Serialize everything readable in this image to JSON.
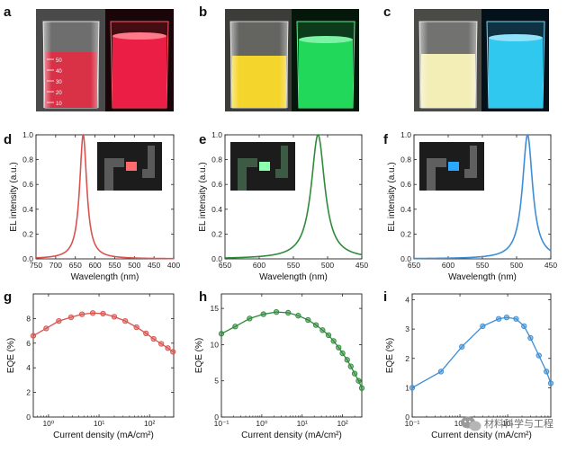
{
  "panel_labels": {
    "a": "a",
    "b": "b",
    "c": "c",
    "d": "d",
    "e": "e",
    "f": "f",
    "g": "g",
    "h": "h",
    "i": "i"
  },
  "photos": {
    "a": {
      "liquid_left": "#d7263d",
      "liquid_right": "#f4204a",
      "glow_bg": "#1a0608",
      "beaker_marks": [
        "50",
        "40",
        "30",
        "20",
        "10"
      ]
    },
    "b": {
      "liquid_left": "#f4d320",
      "liquid_right": "#22d85a",
      "glow_bg": "#05170a"
    },
    "c": {
      "liquid_left": "#f1edb2",
      "liquid_right": "#31c8f0",
      "glow_bg": "#04111a"
    }
  },
  "colors": {
    "red": "#d9534f",
    "green": "#2e8b3a",
    "blue": "#3d8ed6"
  },
  "watermark": "材料科学与工程",
  "watermark_icon": "wechat-icon",
  "chart_data": [
    {
      "panel": "d",
      "type": "line",
      "color": "#d9534f",
      "xlabel": "Wavelength (nm)",
      "ylabel": "EL intensity (a.u.)",
      "xlim": [
        750,
        400
      ],
      "ylim": [
        0,
        1.0
      ],
      "xticks": [
        750,
        700,
        650,
        600,
        550,
        500,
        450,
        400
      ],
      "yticks": [
        0.0,
        0.2,
        0.4,
        0.6,
        0.8,
        1.0
      ],
      "peak": 630,
      "fwhm": 22,
      "inset": {
        "pixel_color": "#ff6b6b",
        "frame": "#5a5a5a"
      }
    },
    {
      "panel": "e",
      "type": "line",
      "color": "#2e8b3a",
      "xlabel": "Wavelength (nm)",
      "ylabel": "EL intensity (a.u.)",
      "xlim": [
        650,
        450
      ],
      "ylim": [
        0,
        1.0
      ],
      "xticks": [
        650,
        600,
        550,
        500,
        450
      ],
      "yticks": [
        0.0,
        0.2,
        0.4,
        0.6,
        0.8,
        1.0
      ],
      "peak": 514,
      "fwhm": 24,
      "inset": {
        "pixel_color": "#8dffb0",
        "frame": "#3d5a44"
      }
    },
    {
      "panel": "f",
      "type": "line",
      "color": "#3d8ed6",
      "xlabel": "Wavelength (nm)",
      "ylabel": "EL intensity (a.u.)",
      "xlim": [
        650,
        450
      ],
      "ylim": [
        0,
        1.0
      ],
      "xticks": [
        650,
        600,
        550,
        500,
        450
      ],
      "yticks": [
        0.0,
        0.2,
        0.4,
        0.6,
        0.8,
        1.0
      ],
      "peak": 484,
      "fwhm": 18,
      "inset": {
        "pixel_color": "#2aa8ff",
        "frame": "#5f5f5f"
      }
    },
    {
      "panel": "g",
      "type": "scatter",
      "color": "#d9534f",
      "xlabel": "Current density (mA/cm²)",
      "ylabel": "EQE (%)",
      "xscale": "log",
      "xlim": [
        0.5,
        300
      ],
      "ylim": [
        0,
        10
      ],
      "xticks": [
        {
          "v": 1,
          "label": "10⁰"
        },
        {
          "v": 10,
          "label": "10¹"
        },
        {
          "v": 100,
          "label": "10²"
        }
      ],
      "yticks": [
        0,
        2,
        4,
        6,
        8
      ],
      "x": [
        0.5,
        0.9,
        1.6,
        2.8,
        4.6,
        7.5,
        12,
        20,
        33,
        55,
        85,
        120,
        170,
        230,
        290
      ],
      "y": [
        6.6,
        7.2,
        7.8,
        8.1,
        8.35,
        8.45,
        8.4,
        8.15,
        7.8,
        7.3,
        6.8,
        6.35,
        5.95,
        5.6,
        5.3
      ]
    },
    {
      "panel": "h",
      "type": "scatter",
      "color": "#2e8b3a",
      "xlabel": "Current density (mA/cm²)",
      "ylabel": "EQE (%)",
      "xscale": "log",
      "xlim": [
        0.1,
        300
      ],
      "ylim": [
        0,
        17
      ],
      "xticks": [
        {
          "v": 0.1,
          "label": "10⁻¹"
        },
        {
          "v": 1,
          "label": "10⁰"
        },
        {
          "v": 10,
          "label": "10¹"
        },
        {
          "v": 100,
          "label": "10²"
        }
      ],
      "yticks": [
        0,
        5,
        10,
        15
      ],
      "x": [
        0.1,
        0.22,
        0.5,
        1.1,
        2.3,
        4.5,
        8,
        14,
        22,
        32,
        45,
        60,
        80,
        100,
        130,
        160,
        200,
        250,
        300
      ],
      "y": [
        11.5,
        12.5,
        13.6,
        14.2,
        14.5,
        14.4,
        14.0,
        13.4,
        12.7,
        12.0,
        11.3,
        10.5,
        9.6,
        8.8,
        7.9,
        7.0,
        6.0,
        5.0,
        4.0
      ]
    },
    {
      "panel": "i",
      "type": "scatter",
      "color": "#3d8ed6",
      "xlabel": "Current density (mA/cm²)",
      "ylabel": "EQE (%)",
      "xscale": "log",
      "xlim": [
        0.1,
        80
      ],
      "ylim": [
        0,
        4.2
      ],
      "xticks": [
        {
          "v": 0.1,
          "label": "10⁻¹"
        },
        {
          "v": 1,
          "label": "10⁰"
        },
        {
          "v": 10,
          "label": "10¹"
        }
      ],
      "yticks": [
        0,
        1,
        2,
        3,
        4
      ],
      "x": [
        0.1,
        0.4,
        1.1,
        3.0,
        6.5,
        9.5,
        15,
        22,
        30,
        45,
        65,
        80
      ],
      "y": [
        1.0,
        1.55,
        2.4,
        3.1,
        3.35,
        3.4,
        3.35,
        3.1,
        2.7,
        2.1,
        1.55,
        1.15
      ]
    }
  ]
}
